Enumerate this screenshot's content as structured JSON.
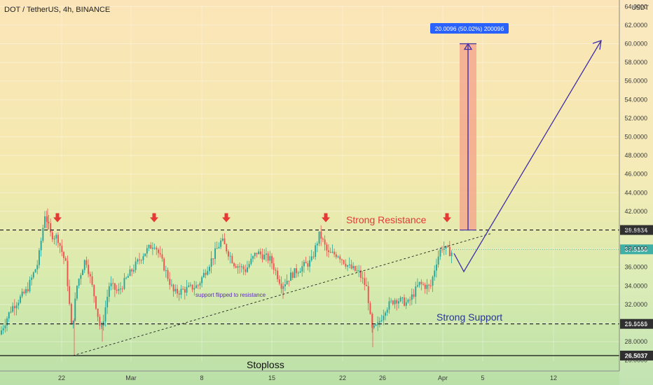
{
  "header": {
    "title": "DOT / TetherUS, 4h, BINANCE"
  },
  "chart_data": {
    "type": "candlestick",
    "symbol": "DOT / TetherUS",
    "interval": "4h",
    "exchange": "BINANCE",
    "currency_label": "USDT",
    "y_ticks": [
      "28.0000",
      "30.0000",
      "32.0000",
      "34.0000",
      "36.0000",
      "38.0000",
      "40.0000",
      "42.0000",
      "44.0000",
      "46.0000",
      "48.0000",
      "50.0000",
      "52.0000",
      "54.0000",
      "56.0000",
      "58.0000",
      "60.0000",
      "62.0000",
      "64.0000"
    ],
    "y_edge_label": "26.0000",
    "ylim": [
      25.9,
      64.1
    ],
    "x_ticks": [
      "22",
      "Mar",
      "8",
      "15",
      "22",
      "26",
      "Apr",
      "5",
      "12"
    ],
    "last_price": "37.9150",
    "levels": [
      {
        "value": 39.9934,
        "label": "39.9934",
        "style": "dashed"
      },
      {
        "value": 29.9089,
        "label": "29.9089",
        "style": "dashed"
      },
      {
        "value": 26.5037,
        "label": "26.5037",
        "style": "solid"
      }
    ],
    "annotations": {
      "resistance": "Strong Resistance",
      "support": "Strong Support",
      "stoploss": "Stoploss",
      "flip_note": "support flipped to resistance",
      "measure_label": "20.0096 (50.02%) 20009б",
      "measure_from": 39.9934,
      "measure_to": 60.0
    },
    "colors": {
      "up": "#26a69a",
      "down": "#ef5350",
      "arrow": "#e53935",
      "projection": "#3f2fa8",
      "measure_fill": "#f4a08a",
      "label_blue": "#2962ff",
      "resistance_text": "#e53935",
      "support_text": "#283593"
    }
  }
}
